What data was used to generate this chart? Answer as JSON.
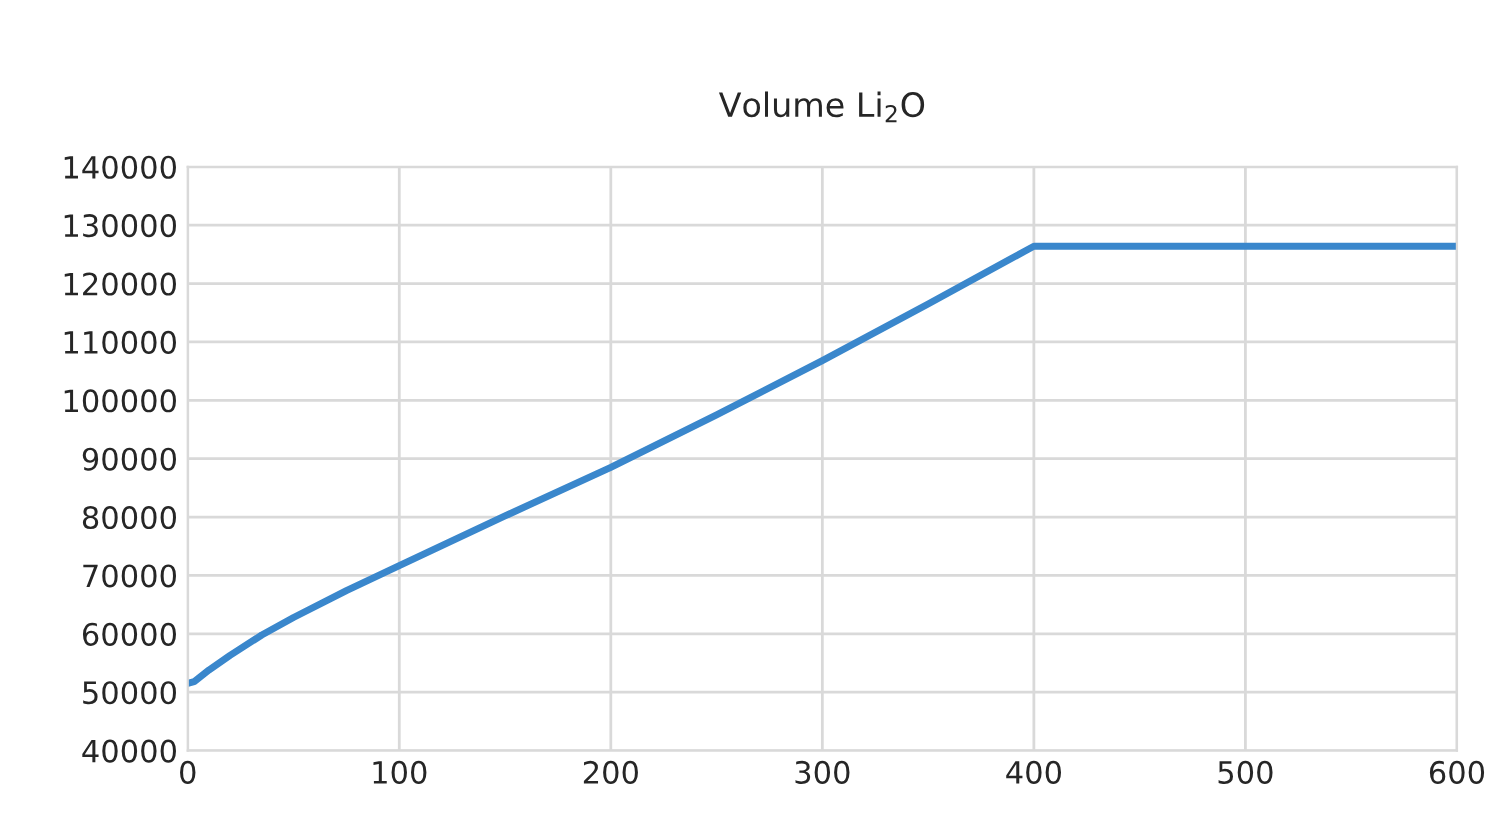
{
  "chart_data": {
    "type": "line",
    "title": "Volume Li$_{2}$O",
    "x": [
      0,
      3,
      10,
      20,
      35,
      50,
      75,
      100,
      150,
      200,
      250,
      300,
      350,
      400,
      500,
      600
    ],
    "series": [
      {
        "color": "#3a87cc",
        "values": [
          51500,
          51800,
          53800,
          56300,
          59800,
          62800,
          67400,
          71700,
          80200,
          88500,
          97500,
          106800,
          116500,
          126400,
          126400,
          126400
        ]
      }
    ],
    "xlim": [
      0,
      600
    ],
    "xticks": [
      0,
      100,
      200,
      300,
      400,
      500,
      600
    ],
    "ylim": [
      40000,
      140000
    ],
    "yticks": [
      40000,
      50000,
      60000,
      70000,
      80000,
      90000,
      100000,
      110000,
      120000,
      130000,
      140000
    ],
    "grid": true,
    "marker": "none",
    "line_style": "solid"
  }
}
